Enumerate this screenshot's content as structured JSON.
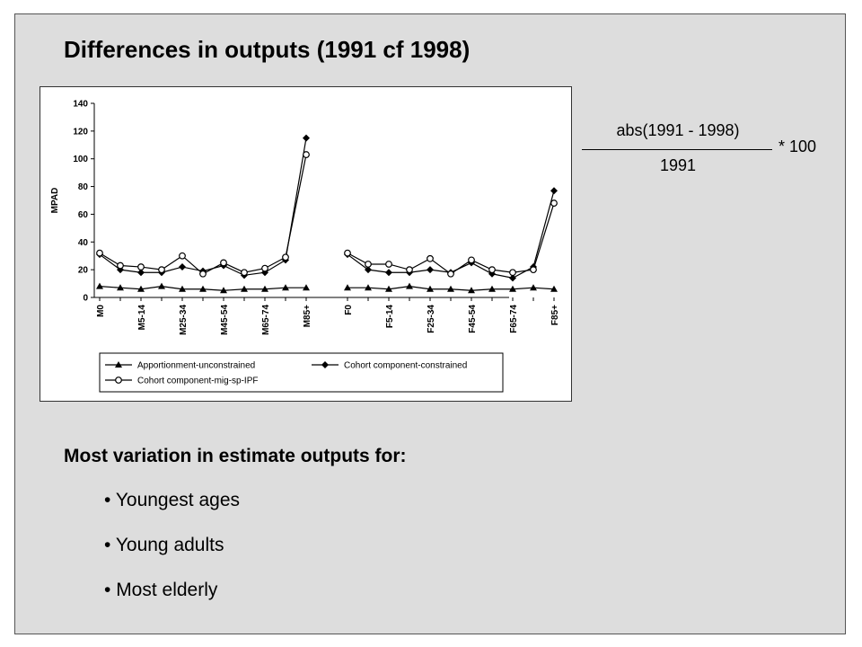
{
  "title": "Differences in outputs (1991 cf 1998)",
  "formula": {
    "numerator": "abs(1991 - 1998)",
    "denominator": "1991",
    "multiplier": "* 100"
  },
  "heading": "Most variation in estimate outputs for:",
  "bullets": [
    "Youngest ages",
    "Young adults",
    "Most elderly"
  ],
  "colors": {
    "background": "#dddddd",
    "series": "#000000"
  },
  "chart_data": {
    "type": "line",
    "ylabel": "MPAD",
    "ylim": [
      0,
      140
    ],
    "yticks": [
      0,
      20,
      40,
      60,
      80,
      100,
      120,
      140
    ],
    "groups": [
      {
        "categories": [
          "M0",
          "",
          "M5-14",
          "",
          "M25-34",
          "",
          "M45-54",
          "",
          "M65-74",
          "",
          "M85+"
        ],
        "series": [
          {
            "name": "Apportionment-unconstrained",
            "marker": "triangle",
            "values": [
              8,
              7,
              6,
              8,
              6,
              6,
              5,
              6,
              6,
              7,
              7
            ]
          },
          {
            "name": "Cohort component-constrained",
            "marker": "diamond",
            "values": [
              31,
              20,
              18,
              18,
              22,
              19,
              23,
              16,
              18,
              27,
              115
            ]
          },
          {
            "name": "Cohort component-mig-sp-IPF",
            "marker": "circle",
            "values": [
              32,
              23,
              22,
              20,
              30,
              17,
              25,
              18,
              21,
              29,
              103
            ]
          }
        ]
      },
      {
        "categories": [
          "F0",
          "",
          "F5-14",
          "",
          "F25-34",
          "",
          "F45-54",
          "",
          "F65-74",
          "",
          "F85+"
        ],
        "series": [
          {
            "name": "Apportionment-unconstrained",
            "marker": "triangle",
            "values": [
              7,
              7,
              6,
              8,
              6,
              6,
              5,
              6,
              6,
              7,
              6
            ]
          },
          {
            "name": "Cohort component-constrained",
            "marker": "diamond",
            "values": [
              31,
              20,
              18,
              18,
              20,
              18,
              25,
              17,
              14,
              22,
              77
            ]
          },
          {
            "name": "Cohort component-mig-sp-IPF",
            "marker": "circle",
            "values": [
              32,
              24,
              24,
              20,
              28,
              17,
              27,
              20,
              18,
              20,
              68
            ]
          }
        ]
      }
    ],
    "legend": {
      "placement": "bottom",
      "entries": [
        "Apportionment-unconstrained",
        "Cohort component-constrained",
        "Cohort component-mig-sp-IPF"
      ]
    },
    "grid": false
  }
}
